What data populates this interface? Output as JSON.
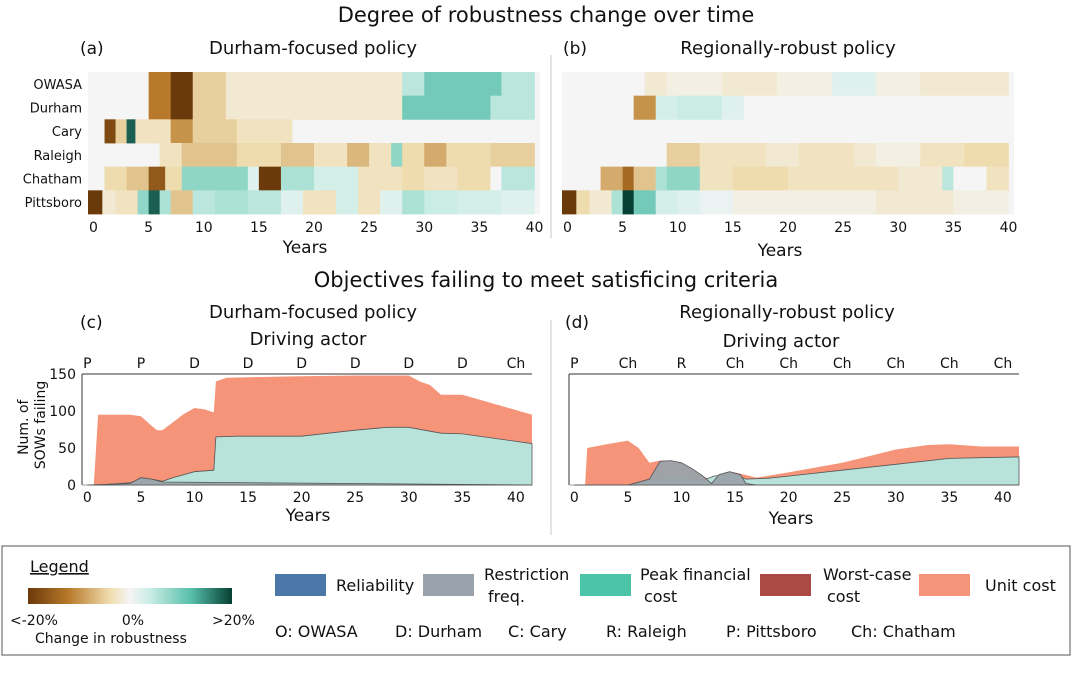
{
  "figure": {
    "top_title": "Degree of robustness change over time",
    "mid_title": "Objectives failing to meet satisficing criteria"
  },
  "chart_data": [
    {
      "id": "a",
      "type": "heatmap",
      "panel_label": "(a)",
      "title": "Durham-focused policy",
      "xlabel": "Years",
      "x_ticks": [
        0,
        5,
        10,
        15,
        20,
        25,
        30,
        35,
        40
      ],
      "xlim": [
        -0.5,
        40.5
      ],
      "rows": [
        "OWASA",
        "Durham",
        "Cary",
        "Raleigh",
        "Chatham",
        "Pittsboro"
      ],
      "value_units": "percent change in robustness",
      "color_range": [
        -20,
        20
      ],
      "segments": {
        "OWASA": [
          [
            5,
            7,
            -12
          ],
          [
            7,
            9,
            -20
          ],
          [
            9,
            12,
            -5
          ],
          [
            12,
            25,
            -2
          ],
          [
            25,
            28,
            -2
          ],
          [
            28,
            30,
            5
          ],
          [
            30,
            37,
            10
          ],
          [
            37,
            40,
            5
          ]
        ],
        "Durham": [
          [
            5,
            7,
            -12
          ],
          [
            7,
            9,
            -20
          ],
          [
            9,
            12,
            -5
          ],
          [
            12,
            22,
            -2
          ],
          [
            22,
            28,
            -2
          ],
          [
            28,
            31,
            10
          ],
          [
            31,
            36,
            10
          ],
          [
            36,
            40,
            5
          ]
        ],
        "Cary": [
          [
            1,
            2,
            -18
          ],
          [
            2,
            3,
            -5
          ],
          [
            3,
            3.8,
            18
          ],
          [
            3.8,
            5,
            -3
          ],
          [
            5,
            7,
            -3
          ],
          [
            7,
            9,
            -10
          ],
          [
            9,
            13,
            -5
          ],
          [
            13,
            18,
            -3
          ]
        ],
        "Raleigh": [
          [
            6,
            8,
            -3
          ],
          [
            8,
            13,
            -6
          ],
          [
            13,
            17,
            -4
          ],
          [
            17,
            20,
            -6
          ],
          [
            20,
            23,
            -3
          ],
          [
            23,
            25,
            -7
          ],
          [
            25,
            27,
            -3
          ],
          [
            27,
            28,
            8
          ],
          [
            28,
            30,
            -4
          ],
          [
            30,
            32,
            -8
          ],
          [
            32,
            36,
            -4
          ],
          [
            36,
            40,
            -5
          ]
        ],
        "Chatham": [
          [
            1,
            3,
            -4
          ],
          [
            3,
            5,
            -6
          ],
          [
            5,
            6.5,
            -16
          ],
          [
            6.5,
            8,
            -4
          ],
          [
            8,
            11,
            8
          ],
          [
            11,
            14,
            8
          ],
          [
            14,
            15,
            2
          ],
          [
            15,
            17,
            -20
          ],
          [
            17,
            20,
            6
          ],
          [
            20,
            24,
            3
          ],
          [
            24,
            28,
            -3
          ],
          [
            28,
            30,
            -4
          ],
          [
            30,
            33,
            -3
          ],
          [
            33,
            36,
            -4
          ],
          [
            36,
            37,
            0
          ],
          [
            37,
            40,
            5
          ]
        ],
        "Pittsboro": [
          [
            -0.5,
            0.8,
            -22
          ],
          [
            0.8,
            2,
            -2
          ],
          [
            2,
            4,
            -3
          ],
          [
            4,
            5,
            8
          ],
          [
            5,
            6,
            18
          ],
          [
            6,
            7,
            6
          ],
          [
            7,
            9,
            -6
          ],
          [
            9,
            11,
            5
          ],
          [
            11,
            14,
            6
          ],
          [
            14,
            17,
            5
          ],
          [
            17,
            19,
            2
          ],
          [
            19,
            22,
            -3
          ],
          [
            22,
            24,
            3
          ],
          [
            24,
            26,
            -3
          ],
          [
            26,
            28,
            2
          ],
          [
            28,
            30,
            6
          ],
          [
            30,
            33,
            4
          ],
          [
            33,
            37,
            3
          ],
          [
            37,
            40,
            2
          ]
        ]
      }
    },
    {
      "id": "b",
      "type": "heatmap",
      "panel_label": "(b)",
      "title": "Regionally-robust policy",
      "xlabel": "Years",
      "x_ticks": [
        0,
        5,
        10,
        15,
        20,
        25,
        30,
        35,
        40
      ],
      "xlim": [
        -0.5,
        40.5
      ],
      "rows": [
        "OWASA",
        "Durham",
        "Cary",
        "Raleigh",
        "Chatham",
        "Pittsboro"
      ],
      "value_units": "percent change in robustness",
      "color_range": [
        -20,
        20
      ],
      "segments": {
        "OWASA": [
          [
            7,
            9,
            -2
          ],
          [
            9,
            14,
            -1
          ],
          [
            14,
            19,
            -2
          ],
          [
            19,
            24,
            -1
          ],
          [
            24,
            28,
            2
          ],
          [
            28,
            32,
            -1
          ],
          [
            32,
            40,
            -2
          ]
        ],
        "Durham": [
          [
            6,
            8,
            -10
          ],
          [
            8,
            10,
            3
          ],
          [
            10,
            14,
            4
          ],
          [
            14,
            16,
            2
          ],
          [
            16,
            40,
            0
          ]
        ],
        "Cary": [],
        "Raleigh": [
          [
            9,
            12,
            -5
          ],
          [
            12,
            15,
            -3
          ],
          [
            15,
            18,
            -3
          ],
          [
            18,
            21,
            -2
          ],
          [
            21,
            26,
            -3
          ],
          [
            26,
            28,
            -2
          ],
          [
            28,
            32,
            -1
          ],
          [
            32,
            36,
            -3
          ],
          [
            36,
            40,
            -4
          ]
        ],
        "Chatham": [
          [
            3,
            5,
            -8
          ],
          [
            5,
            6,
            -14
          ],
          [
            6,
            8,
            -6
          ],
          [
            8,
            9,
            6
          ],
          [
            9,
            12,
            8
          ],
          [
            12,
            15,
            -3
          ],
          [
            15,
            20,
            -4
          ],
          [
            20,
            26,
            -3
          ],
          [
            26,
            30,
            -3
          ],
          [
            30,
            34,
            -2
          ],
          [
            34,
            35,
            5
          ],
          [
            35,
            38,
            0
          ],
          [
            38,
            40,
            -3
          ]
        ],
        "Pittsboro": [
          [
            -0.5,
            0.8,
            -22
          ],
          [
            0.8,
            2,
            -4
          ],
          [
            2,
            4,
            -2
          ],
          [
            4,
            5,
            6
          ],
          [
            5,
            6,
            22
          ],
          [
            6,
            8,
            10
          ],
          [
            8,
            10,
            3
          ],
          [
            10,
            12,
            2
          ],
          [
            12,
            15,
            1
          ],
          [
            15,
            20,
            -1
          ],
          [
            20,
            28,
            -1
          ],
          [
            28,
            35,
            -2
          ],
          [
            35,
            40,
            -1
          ]
        ]
      }
    },
    {
      "id": "c",
      "type": "area",
      "panel_label": "(c)",
      "title": "Durham-focused policy",
      "subtitle": "Driving actor",
      "top_labels": [
        "P",
        "P",
        "D",
        "D",
        "D",
        "D",
        "D",
        "D",
        "Ch"
      ],
      "top_label_x": [
        0,
        5,
        10,
        15,
        20,
        25,
        30,
        35,
        40
      ],
      "xlabel": "Years",
      "ylabel": "Num. of SOWs failing",
      "x_ticks": [
        0,
        5,
        10,
        15,
        20,
        25,
        30,
        35,
        40
      ],
      "y_ticks": [
        0,
        50,
        100,
        150
      ],
      "xlim": [
        -0.5,
        41.5
      ],
      "ylim": [
        0,
        150
      ],
      "series": [
        {
          "name": "Peak financial cost",
          "color": "#b7e3db",
          "x": [
            0,
            1,
            4,
            5,
            6,
            7,
            8,
            10,
            11.8,
            12,
            14,
            20,
            25,
            28,
            30,
            33,
            35,
            41.5
          ],
          "y": [
            0,
            0,
            3,
            8,
            8,
            5,
            10,
            18,
            20,
            65,
            66,
            66,
            74,
            78,
            78,
            70,
            69,
            56
          ]
        },
        {
          "name": "Restriction freq.",
          "color": "#9aa3ab",
          "x": [
            0,
            4,
            5,
            6,
            7,
            41.5
          ],
          "y": [
            0,
            2,
            10,
            8,
            4,
            0
          ]
        },
        {
          "name": "Unit cost",
          "color": "#f59478",
          "x": [
            0,
            0.6,
            1,
            4,
            5,
            6,
            6.5,
            7,
            9,
            10,
            11,
            11.8,
            12,
            13,
            20,
            25,
            30,
            31,
            32,
            33,
            35,
            41.5
          ],
          "y": [
            0,
            0,
            95,
            95,
            93,
            80,
            74,
            74,
            96,
            104,
            102,
            98,
            140,
            145,
            147,
            148,
            148,
            140,
            135,
            122,
            122,
            95
          ]
        }
      ]
    },
    {
      "id": "d",
      "type": "area",
      "panel_label": "(d)",
      "title": "Regionally-robust policy",
      "subtitle": "Driving actor",
      "top_labels": [
        "P",
        "Ch",
        "R",
        "Ch",
        "Ch",
        "Ch",
        "Ch",
        "Ch",
        "Ch"
      ],
      "top_label_x": [
        0,
        5,
        10,
        15,
        20,
        25,
        30,
        35,
        40
      ],
      "xlabel": "Years",
      "x_ticks": [
        0,
        5,
        10,
        15,
        20,
        25,
        30,
        35,
        40
      ],
      "xlim": [
        -0.5,
        41.5
      ],
      "ylim": [
        0,
        150
      ],
      "series": [
        {
          "name": "Peak financial cost",
          "color": "#b7e3db",
          "x": [
            0,
            5,
            8,
            10,
            12,
            13,
            15,
            16,
            18,
            20,
            25,
            30,
            35,
            41.5
          ],
          "y": [
            0,
            0,
            8,
            10,
            6,
            12,
            15,
            8,
            9,
            12,
            20,
            28,
            36,
            38
          ]
        },
        {
          "name": "Restriction freq.",
          "color": "#9aa3ab",
          "x": [
            0,
            5,
            7,
            8,
            9,
            10,
            11,
            12,
            12.8,
            13.5,
            14.5,
            15.5,
            16,
            17,
            41.5
          ],
          "y": [
            0,
            0,
            8,
            32,
            33,
            30,
            22,
            12,
            2,
            14,
            18,
            14,
            2,
            0,
            0
          ]
        },
        {
          "name": "Unit cost",
          "color": "#f59478",
          "x": [
            0,
            1,
            1.2,
            3,
            5,
            6,
            7,
            8,
            9,
            10,
            11,
            12,
            13,
            15,
            17,
            20,
            25,
            30,
            33,
            35,
            38,
            41.5
          ],
          "y": [
            0,
            0,
            50,
            55,
            60,
            50,
            30,
            33,
            33,
            30,
            22,
            12,
            5,
            17,
            10,
            17,
            30,
            48,
            54,
            55,
            52,
            52
          ]
        }
      ]
    }
  ],
  "legend": {
    "title": "Legend",
    "colorbar_min": "<-20%",
    "colorbar_mid": "0%",
    "colorbar_max": ">20%",
    "colorbar_label": "Change in robustness",
    "items": [
      {
        "label": "Reliability",
        "color": "#4a77a8"
      },
      {
        "label": "Restriction freq.",
        "color": "#9aa3ab"
      },
      {
        "label": "Peak financial cost",
        "color": "#4cc4a8"
      },
      {
        "label": "Worst-case cost",
        "color": "#ab4a45"
      },
      {
        "label": "Unit cost",
        "color": "#f59478"
      }
    ],
    "abbreviations": [
      "O: OWASA",
      "D: Durham",
      "C: Cary",
      "R: Raleigh",
      "P: Pittsboro",
      "Ch: Chatham"
    ]
  }
}
